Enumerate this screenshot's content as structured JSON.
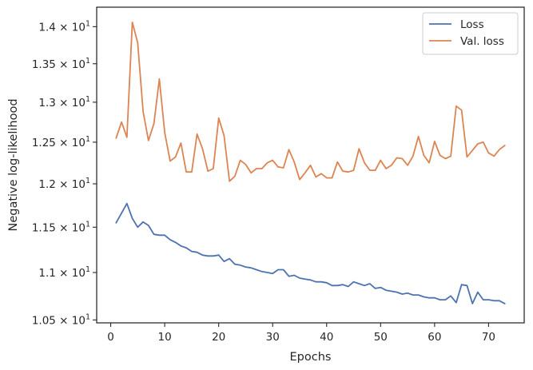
{
  "chart_data": {
    "type": "line",
    "title": "",
    "xlabel": "Epochs",
    "ylabel": "Negative log-likelihood",
    "xlim": [
      -2.6,
      76.6
    ],
    "ylim": [
      10.47,
      14.27
    ],
    "yscale": "log",
    "grid": false,
    "legend_position": "top-right",
    "x_ticks": [
      0,
      10,
      20,
      30,
      40,
      50,
      60,
      70
    ],
    "x_tick_labels": [
      "0",
      "10",
      "20",
      "30",
      "40",
      "50",
      "60",
      "70"
    ],
    "y_ticks": [
      {
        "value": 10.5,
        "mantissa": "1.05",
        "exp": "1"
      },
      {
        "value": 11.0,
        "mantissa": "1.1",
        "exp": "1"
      },
      {
        "value": 11.5,
        "mantissa": "1.15",
        "exp": "1"
      },
      {
        "value": 12.0,
        "mantissa": "1.2",
        "exp": "1"
      },
      {
        "value": 12.5,
        "mantissa": "1.25",
        "exp": "1"
      },
      {
        "value": 13.0,
        "mantissa": "1.3",
        "exp": "1"
      },
      {
        "value": 13.5,
        "mantissa": "1.35",
        "exp": "1"
      },
      {
        "value": 14.0,
        "mantissa": "1.4",
        "exp": "1"
      }
    ],
    "y_tick_times": "×",
    "y_tick_base": "10",
    "series": [
      {
        "name": "Loss",
        "color": "#4c72b0",
        "x": [
          1,
          2,
          3,
          4,
          5,
          6,
          7,
          8,
          9,
          10,
          11,
          12,
          13,
          14,
          15,
          16,
          17,
          18,
          19,
          20,
          21,
          22,
          23,
          24,
          25,
          26,
          27,
          28,
          29,
          30,
          31,
          32,
          33,
          34,
          35,
          36,
          37,
          38,
          39,
          40,
          41,
          42,
          43,
          44,
          45,
          46,
          47,
          48,
          49,
          50,
          51,
          52,
          53,
          54,
          55,
          56,
          57,
          58,
          59,
          60,
          61,
          62,
          63,
          64,
          65,
          66,
          67,
          68,
          69,
          70,
          71,
          72,
          73
        ],
        "y": [
          11.55,
          11.66,
          11.77,
          11.6,
          11.5,
          11.56,
          11.52,
          11.42,
          11.41,
          11.41,
          11.36,
          11.33,
          11.29,
          11.27,
          11.23,
          11.22,
          11.19,
          11.18,
          11.18,
          11.19,
          11.12,
          11.15,
          11.09,
          11.08,
          11.06,
          11.05,
          11.03,
          11.01,
          11.0,
          10.99,
          11.03,
          11.03,
          10.96,
          10.97,
          10.94,
          10.93,
          10.92,
          10.9,
          10.9,
          10.89,
          10.86,
          10.86,
          10.87,
          10.85,
          10.9,
          10.88,
          10.86,
          10.88,
          10.83,
          10.84,
          10.81,
          10.8,
          10.79,
          10.77,
          10.78,
          10.76,
          10.76,
          10.74,
          10.73,
          10.73,
          10.71,
          10.71,
          10.75,
          10.68,
          10.87,
          10.86,
          10.67,
          10.79,
          10.71,
          10.71,
          10.7,
          10.7,
          10.67
        ]
      },
      {
        "name": "Val. loss",
        "color": "#dd8452",
        "x": [
          1,
          2,
          3,
          4,
          5,
          6,
          7,
          8,
          9,
          10,
          11,
          12,
          13,
          14,
          15,
          16,
          17,
          18,
          19,
          20,
          21,
          22,
          23,
          24,
          25,
          26,
          27,
          28,
          29,
          30,
          31,
          32,
          33,
          34,
          35,
          36,
          37,
          38,
          39,
          40,
          41,
          42,
          43,
          44,
          45,
          46,
          47,
          48,
          49,
          50,
          51,
          52,
          53,
          54,
          55,
          56,
          57,
          58,
          59,
          60,
          61,
          62,
          63,
          64,
          65,
          66,
          67,
          68,
          69,
          70,
          71,
          72,
          73
        ],
        "y": [
          12.55,
          12.75,
          12.56,
          14.06,
          13.78,
          12.88,
          12.52,
          12.73,
          13.3,
          12.62,
          12.27,
          12.32,
          12.49,
          12.14,
          12.14,
          12.6,
          12.42,
          12.15,
          12.18,
          12.8,
          12.58,
          12.03,
          12.09,
          12.28,
          12.23,
          12.13,
          12.18,
          12.18,
          12.25,
          12.28,
          12.2,
          12.19,
          12.41,
          12.26,
          12.05,
          12.13,
          12.22,
          12.08,
          12.12,
          12.07,
          12.07,
          12.26,
          12.15,
          12.14,
          12.16,
          12.42,
          12.25,
          12.16,
          12.16,
          12.28,
          12.18,
          12.22,
          12.31,
          12.3,
          12.22,
          12.33,
          12.57,
          12.34,
          12.25,
          12.51,
          12.34,
          12.3,
          12.33,
          12.95,
          12.9,
          12.32,
          12.4,
          12.48,
          12.5,
          12.37,
          12.33,
          12.41,
          12.46
        ]
      }
    ]
  }
}
